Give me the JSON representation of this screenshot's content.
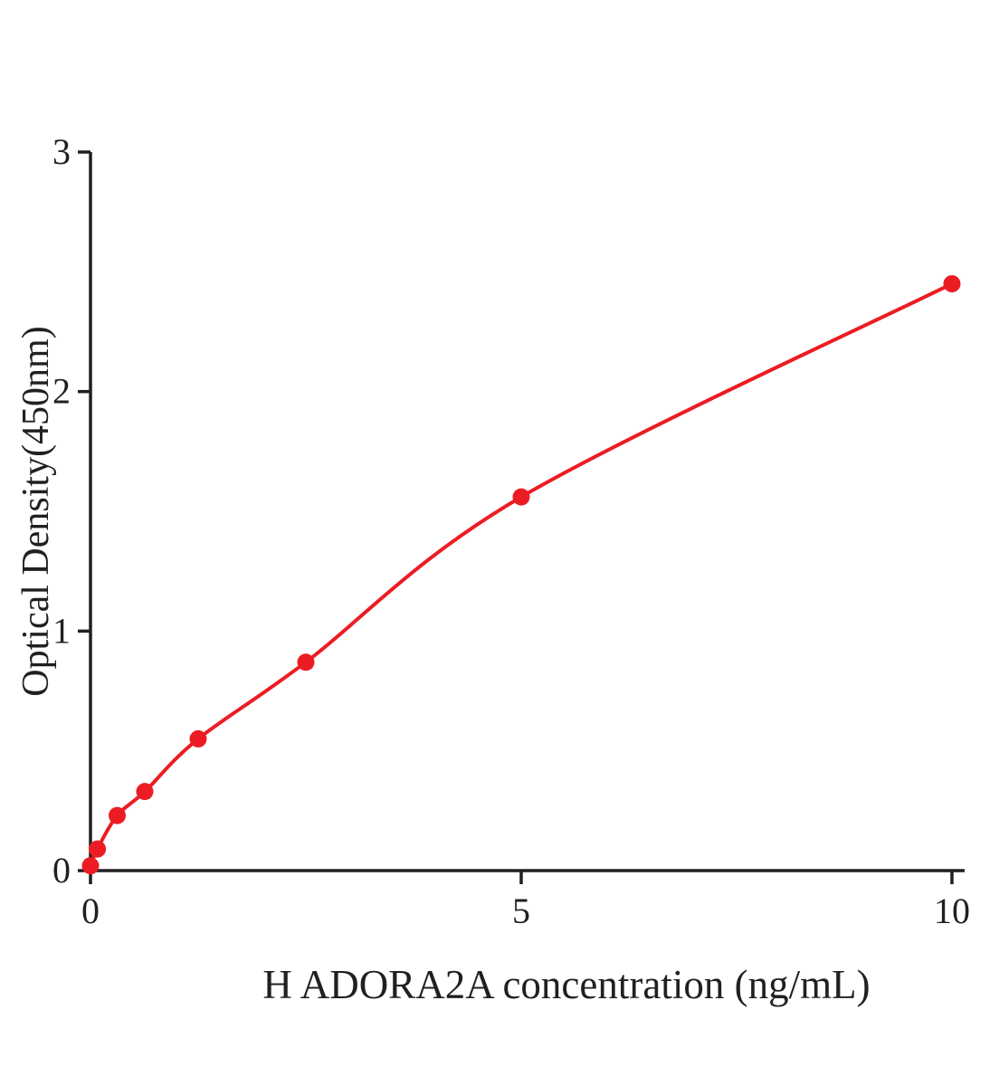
{
  "chart_data": {
    "type": "scatter",
    "title": "",
    "xlabel": "H ADORA2A concentration (ng/mL)",
    "ylabel": "Optical Density(450nm)",
    "x": [
      0,
      0.08,
      0.31,
      0.63,
      1.25,
      2.5,
      5,
      10
    ],
    "y": [
      0.02,
      0.09,
      0.23,
      0.33,
      0.55,
      0.87,
      1.56,
      2.45
    ],
    "curve": "smooth fit through points starting at origin",
    "xlim": [
      0,
      10.1
    ],
    "ylim": [
      0,
      3
    ],
    "x_ticks": [
      0,
      5,
      10
    ],
    "y_ticks": [
      0,
      1,
      2,
      3
    ],
    "grid": false,
    "legend": "none",
    "line_color": "#ec1c24",
    "marker_color": "#ec1c24",
    "axis_color": "#231f20",
    "marker_radius": 9.5,
    "line_width": 4
  }
}
